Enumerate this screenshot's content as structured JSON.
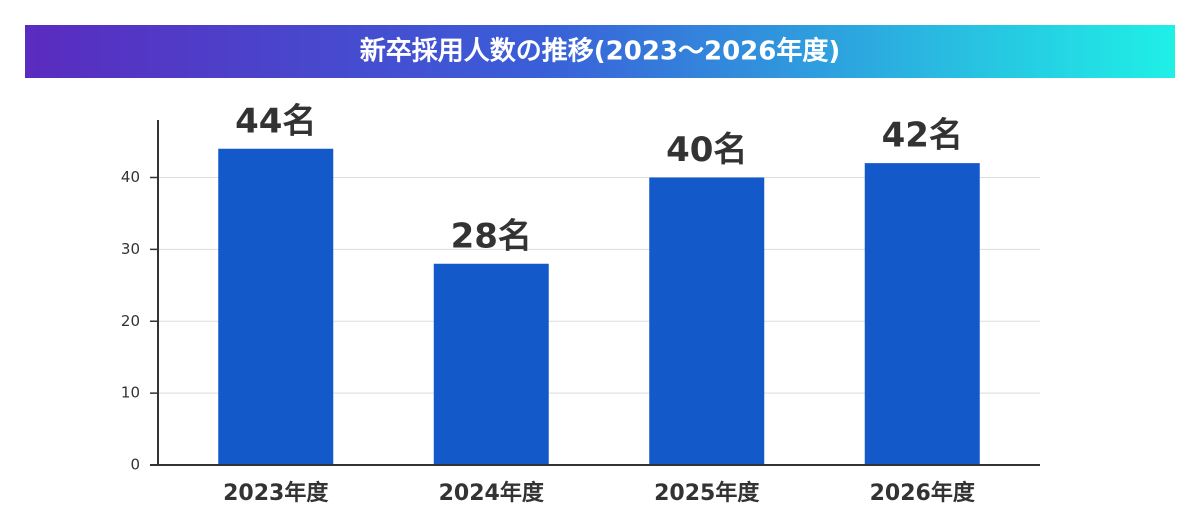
{
  "chart_data": {
    "type": "bar",
    "title": "新卒採用人数の推移(2023〜2026年度)",
    "categories": [
      "2023年度",
      "2024年度",
      "2025年度",
      "2026年度"
    ],
    "values": [
      44,
      28,
      40,
      42
    ],
    "value_labels": [
      "44名",
      "28名",
      "40名",
      "42名"
    ],
    "color": "#1459c9",
    "ylim": [
      0,
      48
    ],
    "yticks": [
      0,
      10,
      20,
      30,
      40
    ],
    "grid": true
  }
}
